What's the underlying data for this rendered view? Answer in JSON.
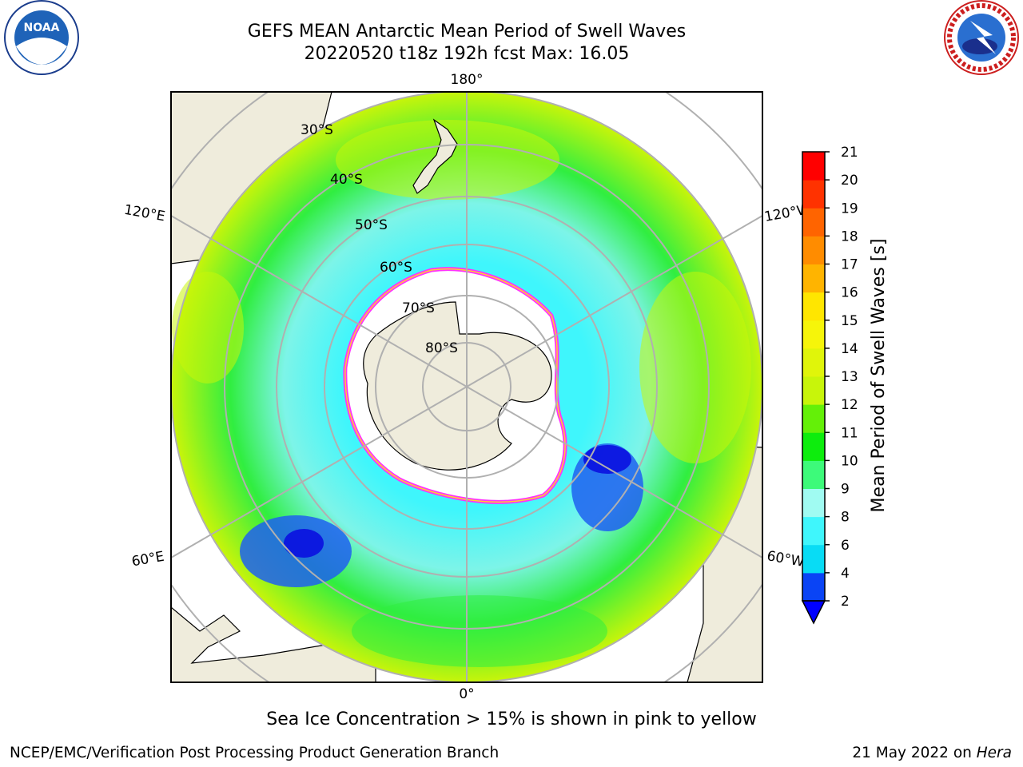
{
  "header": {
    "title_line1": "GEFS MEAN Antarctic Mean Period of Swell Waves",
    "title_line2": "20220520 t18z 192h fcst   Max: 16.05"
  },
  "logos": {
    "left": {
      "name": "noaa-logo",
      "text": "NOAA",
      "ring_text": "NATIONAL OCEANIC AND ATMOSPHERIC ADMINISTRATION · U.S. DEPARTMENT OF COMMERCE"
    },
    "right": {
      "name": "nws-logo",
      "ring_text": "NATIONAL WEATHER SERVICE"
    }
  },
  "map": {
    "projection": "south-polar-stereographic",
    "longitude_labels": {
      "top": "180°",
      "bottom": "0°",
      "left_upper": "120°E",
      "left_lower": "60°E",
      "right_upper": "120°W",
      "right_lower": "60°W"
    },
    "latitude_labels": [
      "30°S",
      "40°S",
      "50°S",
      "60°S",
      "70°S",
      "80°S"
    ],
    "colors": {
      "land": "#efecdc",
      "ice": "#ffffff",
      "ice_edge_outer": "#ff33ff",
      "ice_edge_inner": "#ffcc33",
      "grid": "#b0b0b0"
    }
  },
  "colorbar": {
    "label": "Mean Period of Swell Waves [s]",
    "ticks": [
      "2",
      "4",
      "6",
      "8",
      "9",
      "10",
      "11",
      "12",
      "13",
      "14",
      "15",
      "16",
      "17",
      "18",
      "19",
      "20",
      "21"
    ],
    "colors": [
      "#0a44f5",
      "#08dcf5",
      "#3ff6fc",
      "#a0fbf2",
      "#3dfa7a",
      "#0ded0d",
      "#64f008",
      "#c8f50a",
      "#e0f50a",
      "#f6f50a",
      "#ffe600",
      "#ffb400",
      "#ff8c00",
      "#ff6400",
      "#ff3200",
      "#ff0000"
    ],
    "extend_color": "#0000ff"
  },
  "footer": {
    "note": "Sea Ice Concentration > 15% is shown in pink to yellow",
    "credit": "NCEP/EMC/Verification Post Processing Product Generation Branch",
    "date": "21 May 2022 on ",
    "machine": "Hera"
  }
}
